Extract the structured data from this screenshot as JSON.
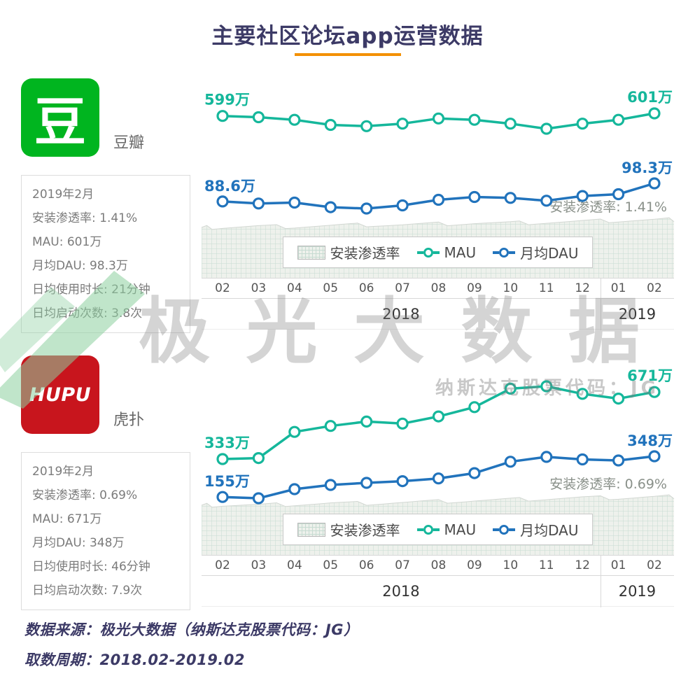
{
  "title": "主要社区论坛app运营数据",
  "watermark": {
    "text": "极 光 大 数 据",
    "subtext": "纳斯达克股票代码：JG"
  },
  "footer": {
    "source": "数据来源：极光大数据（纳斯达克股票代码：JG）",
    "period": "取数周期：2018.02-2019.02"
  },
  "colors": {
    "title_navy": "#3c3a66",
    "accent_orange": "#f39000",
    "mau_teal": "#15b79b",
    "dau_blue": "#2173bc",
    "douban_green": "#00b51f",
    "hupu_red": "#c8151d"
  },
  "apps": [
    {
      "name": "豆瓣",
      "icon_text": "豆",
      "icon_color": "#00b51f",
      "stats": [
        "2019年2月",
        "安装渗透率: 1.41%",
        "MAU: 601万",
        "月均DAU: 98.3万",
        "日均使用时长: 21分钟",
        "日均启动次数: 3.8次"
      ]
    },
    {
      "name": "虎扑",
      "icon_text": "HUPU",
      "icon_color": "#c8151d",
      "stats": [
        "2019年2月",
        "安装渗透率: 0.69%",
        "MAU: 671万",
        "月均DAU: 348万",
        "日均使用时长: 46分钟",
        "日均启动次数: 7.9次"
      ]
    }
  ],
  "chart_data": [
    {
      "type": "line",
      "app": "豆瓣",
      "x": [
        "02",
        "03",
        "04",
        "05",
        "06",
        "07",
        "08",
        "09",
        "10",
        "11",
        "12",
        "01",
        "02"
      ],
      "year_bands": [
        {
          "label": "2018",
          "months": 11
        },
        {
          "label": "2019",
          "months": 2
        }
      ],
      "series": [
        {
          "name": "MAU",
          "unit": "万",
          "color": "#15b79b",
          "values": [
            599,
            598,
            596,
            592,
            591,
            593,
            597,
            596,
            593,
            589,
            593,
            596,
            601
          ]
        },
        {
          "name": "月均DAU",
          "unit": "万",
          "color": "#2173bc",
          "values": [
            88.6,
            87.5,
            88,
            85.5,
            84.8,
            86.5,
            89.5,
            91,
            90.5,
            89,
            91.5,
            92.5,
            98.3
          ]
        },
        {
          "name": "安装渗透率",
          "unit": "%",
          "style": "area",
          "values": [
            1.32,
            1.33,
            1.33,
            1.34,
            1.35,
            1.35,
            1.36,
            1.37,
            1.37,
            1.38,
            1.39,
            1.4,
            1.41
          ]
        }
      ],
      "annotations": {
        "mau_start": "599万",
        "mau_end": "601万",
        "dau_start": "88.6万",
        "dau_end": "98.3万",
        "penetration": "安装渗透率: 1.41%"
      },
      "legend": [
        "安装渗透率",
        "MAU",
        "月均DAU"
      ]
    },
    {
      "type": "line",
      "app": "虎扑",
      "x": [
        "02",
        "03",
        "04",
        "05",
        "06",
        "07",
        "08",
        "09",
        "10",
        "11",
        "12",
        "01",
        "02"
      ],
      "year_bands": [
        {
          "label": "2018",
          "months": 11
        },
        {
          "label": "2019",
          "months": 2
        }
      ],
      "series": [
        {
          "name": "MAU",
          "unit": "万",
          "color": "#15b79b",
          "values": [
            333,
            338,
            470,
            500,
            522,
            512,
            548,
            595,
            688,
            700,
            662,
            638,
            671
          ]
        },
        {
          "name": "月均DAU",
          "unit": "万",
          "color": "#2173bc",
          "values": [
            155,
            149,
            192,
            212,
            222,
            230,
            243,
            268,
            322,
            345,
            333,
            328,
            348
          ]
        },
        {
          "name": "安装渗透率",
          "unit": "%",
          "style": "area",
          "values": [
            0.6,
            0.6,
            0.61,
            0.62,
            0.62,
            0.63,
            0.64,
            0.65,
            0.66,
            0.67,
            0.68,
            0.68,
            0.69
          ]
        }
      ],
      "annotations": {
        "mau_start": "333万",
        "mau_end": "671万",
        "dau_start": "155万",
        "dau_end": "348万",
        "penetration": "安装渗透率: 0.69%"
      },
      "legend": [
        "安装渗透率",
        "MAU",
        "月均DAU"
      ]
    }
  ]
}
